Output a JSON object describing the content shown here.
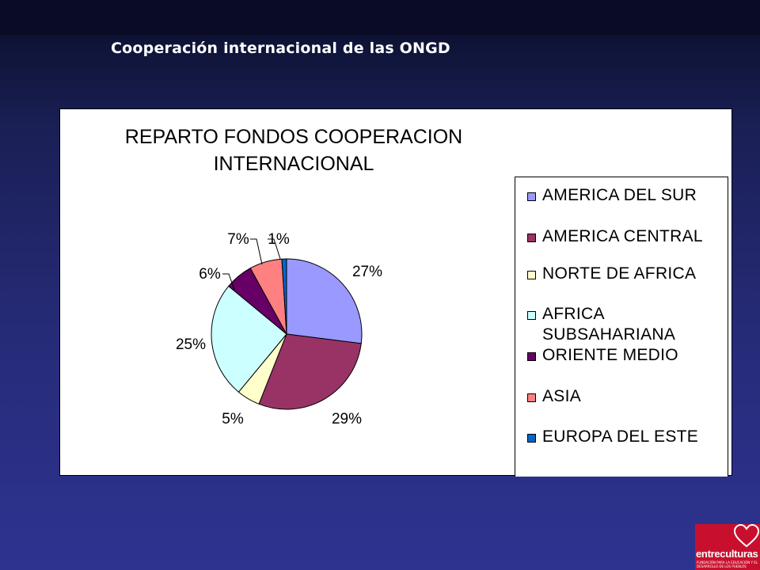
{
  "slide": {
    "title": "Cooperación internacional de las ONGD"
  },
  "chart_data": {
    "type": "pie",
    "title_lines": [
      "REPARTO FONDOS COOPERACION",
      "INTERNACIONAL"
    ],
    "categories": [
      "AMERICA DEL SUR",
      "AMERICA CENTRAL",
      "NORTE DE AFRICA",
      "AFRICA SUBSAHARIANA",
      "ORIENTE MEDIO",
      "ASIA",
      "EUROPA DEL ESTE"
    ],
    "values": [
      27,
      29,
      5,
      25,
      6,
      7,
      1
    ],
    "labels": [
      "27%",
      "29%",
      "5%",
      "25%",
      "6%",
      "7%",
      "1%"
    ],
    "colors": [
      "#9999ff",
      "#993366",
      "#ffffcc",
      "#ccffff",
      "#660066",
      "#ff8080",
      "#0066cc"
    ],
    "legend_position": "right"
  },
  "logo": {
    "name": "entreculturas",
    "tagline": "FUNDACIÓN PARA LA EDUCACIÓN Y EL DESARROLLO DE LOS PUEBLOS"
  }
}
